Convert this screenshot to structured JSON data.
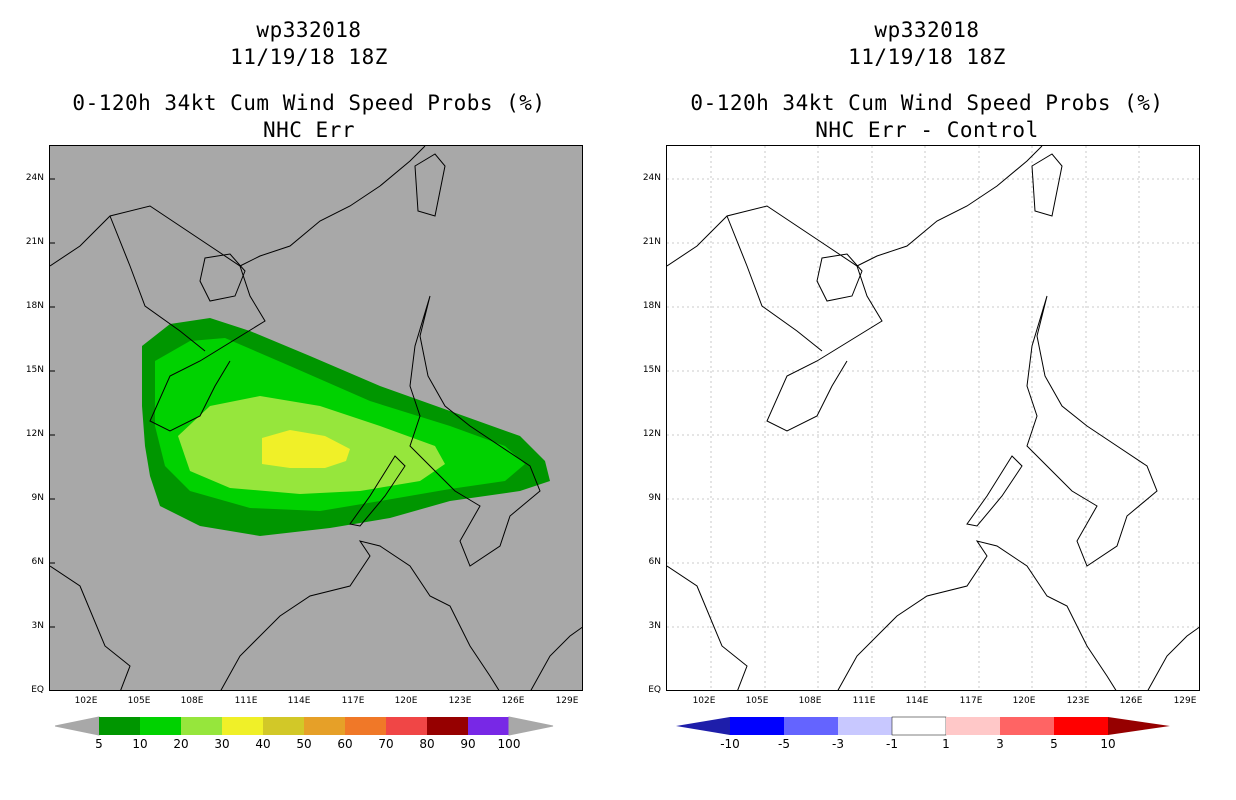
{
  "left": {
    "title_line1": "wp332018",
    "title_line2": "11/19/18 18Z",
    "title_line3": "0-120h 34kt Cum Wind Speed Probs (%)",
    "title_line4": "NHC Err",
    "land_color": "#a8a8a8",
    "colorbar": {
      "colors": [
        "#009600",
        "#00d200",
        "#96e63c",
        "#f0f028",
        "#d2c828",
        "#e6a028",
        "#f07828",
        "#f04646",
        "#960000",
        "#7828e6"
      ],
      "labels": [
        "5",
        "10",
        "20",
        "30",
        "40",
        "50",
        "60",
        "70",
        "80",
        "90",
        "100"
      ]
    },
    "probability_levels": [
      5,
      10,
      20,
      30
    ]
  },
  "right": {
    "title_line1": "wp332018",
    "title_line2": "11/19/18 18Z",
    "title_line3": "0-120h 34kt Cum Wind Speed Probs (%)",
    "title_line4": "NHC Err - Control",
    "colorbar": {
      "colors": [
        "#1e1eaa",
        "#0000ff",
        "#6464ff",
        "#c8c8ff",
        "#ffffff",
        "#ffc8c8",
        "#ff6464",
        "#ff0000",
        "#960000"
      ],
      "labels": [
        "-10",
        "-5",
        "-3",
        "-1",
        "1",
        "3",
        "5",
        "10"
      ]
    }
  },
  "axes": {
    "lon_labels": [
      "102E",
      "105E",
      "108E",
      "111E",
      "114E",
      "117E",
      "120E",
      "123E",
      "126E",
      "129E"
    ],
    "lat_labels": [
      "24N",
      "21N",
      "18N",
      "15N",
      "12N",
      "9N",
      "6N",
      "3N",
      "EQ"
    ],
    "lon_range": [
      100,
      130
    ],
    "lat_range": [
      0,
      25
    ]
  }
}
